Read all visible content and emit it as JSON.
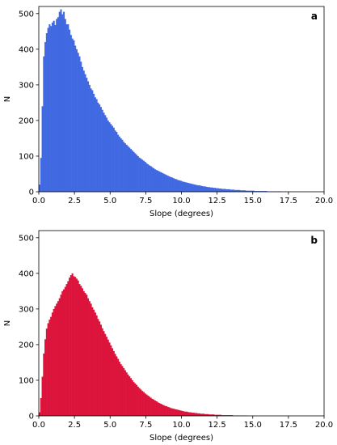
{
  "chart_data": [
    {
      "type": "bar",
      "panel_label": "a",
      "xlabel": "Slope (degrees)",
      "ylabel": "N",
      "xlim": [
        0,
        20
      ],
      "ylim": [
        0,
        520
      ],
      "xticks": [
        "0.0",
        "2.5",
        "5.0",
        "7.5",
        "10.0",
        "12.5",
        "15.0",
        "17.5",
        "20.0"
      ],
      "yticks": [
        "0",
        "100",
        "200",
        "300",
        "400",
        "500"
      ],
      "color": "#4169E1",
      "bin_width": 0.1,
      "bin_start": 0.0,
      "values": [
        20,
        95,
        240,
        380,
        420,
        445,
        460,
        470,
        465,
        475,
        480,
        468,
        485,
        490,
        505,
        512,
        498,
        505,
        485,
        470,
        470,
        455,
        440,
        430,
        425,
        410,
        400,
        390,
        380,
        365,
        350,
        340,
        330,
        320,
        310,
        300,
        290,
        285,
        275,
        265,
        260,
        250,
        245,
        238,
        230,
        222,
        215,
        208,
        200,
        195,
        190,
        185,
        180,
        172,
        168,
        160,
        155,
        150,
        146,
        140,
        136,
        132,
        128,
        124,
        120,
        116,
        112,
        108,
        104,
        100,
        96,
        93,
        90,
        87,
        84,
        80,
        77,
        74,
        72,
        69,
        66,
        63,
        61,
        59,
        57,
        55,
        53,
        51,
        49,
        47,
        45,
        43,
        41,
        40,
        38,
        36,
        35,
        33,
        32,
        31,
        29,
        28,
        27,
        26,
        25,
        24,
        23,
        22,
        21,
        20,
        19,
        18,
        18,
        17,
        16,
        15,
        15,
        14,
        13,
        13,
        12,
        12,
        11,
        11,
        10,
        10,
        9,
        9,
        8,
        8,
        8,
        7,
        7,
        7,
        6,
        6,
        6,
        5,
        5,
        5,
        5,
        4,
        4,
        4,
        4,
        3,
        3,
        3,
        3,
        3,
        3,
        2,
        2,
        2,
        2,
        2,
        2,
        2,
        2,
        2,
        1,
        1,
        1,
        1,
        1,
        1,
        1,
        1,
        1,
        1
      ]
    },
    {
      "type": "bar",
      "panel_label": "b",
      "xlabel": "Slope (degrees)",
      "ylabel": "N",
      "xlim": [
        0,
        20
      ],
      "ylim": [
        0,
        520
      ],
      "xticks": [
        "0.0",
        "2.5",
        "5.0",
        "7.5",
        "10.0",
        "12.5",
        "15.0",
        "17.5",
        "20.0"
      ],
      "yticks": [
        "0",
        "100",
        "200",
        "300",
        "400",
        "500"
      ],
      "color": "#DC143C",
      "bin_width": 0.1,
      "bin_start": 0.0,
      "values": [
        10,
        50,
        110,
        175,
        215,
        245,
        260,
        270,
        278,
        290,
        300,
        308,
        315,
        322,
        330,
        340,
        350,
        355,
        362,
        370,
        378,
        388,
        395,
        400,
        392,
        390,
        385,
        380,
        370,
        365,
        358,
        350,
        345,
        340,
        330,
        322,
        315,
        305,
        298,
        290,
        282,
        272,
        265,
        256,
        246,
        238,
        230,
        222,
        214,
        206,
        198,
        190,
        182,
        174,
        167,
        160,
        152,
        145,
        140,
        134,
        128,
        122,
        116,
        111,
        106,
        100,
        95,
        91,
        87,
        82,
        78,
        74,
        70,
        67,
        63,
        60,
        57,
        54,
        51,
        48,
        46,
        43,
        41,
        38,
        36,
        34,
        32,
        30,
        28,
        27,
        25,
        24,
        22,
        21,
        20,
        19,
        18,
        17,
        16,
        15,
        14,
        13,
        12,
        12,
        11,
        10,
        10,
        9,
        9,
        8,
        8,
        7,
        7,
        6,
        6,
        6,
        5,
        5,
        5,
        4,
        4,
        4,
        4,
        3,
        3,
        3,
        3,
        3,
        2,
        2,
        2,
        2,
        2,
        2,
        2,
        2,
        1,
        1,
        1,
        1,
        1,
        1,
        1,
        1,
        1,
        1
      ]
    }
  ]
}
